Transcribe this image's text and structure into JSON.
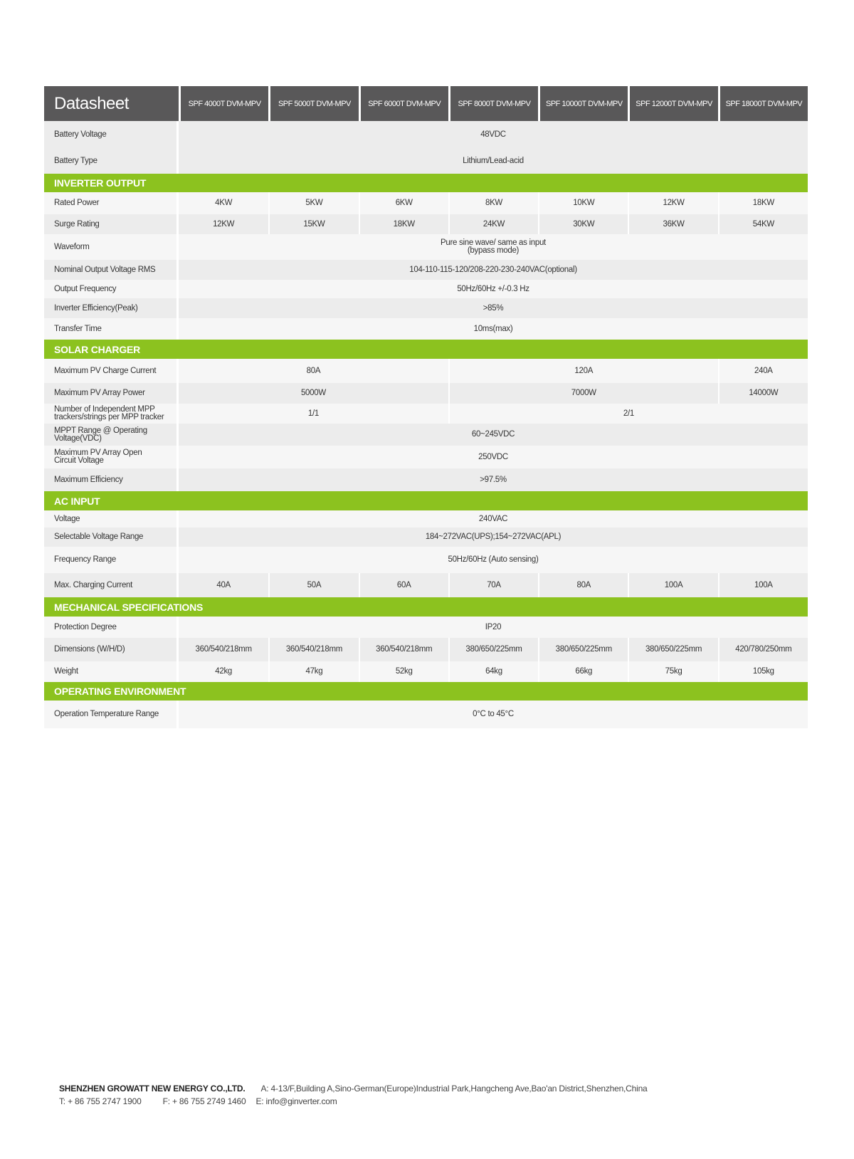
{
  "header": {
    "title": "Datasheet",
    "models": [
      "SPF 4000T DVM-MPV",
      "SPF 5000T DVM-MPV",
      "SPF 6000T DVM-MPV",
      "SPF 8000T DVM-MPV",
      "SPF 10000T DVM-MPV",
      "SPF 12000T DVM-MPV",
      "SPF 18000T DVM-MPV"
    ]
  },
  "colors": {
    "header_bg": "#595859",
    "section_bg": "#8cc21f",
    "row_dark": "#ececec",
    "row_light": "#f6f6f6"
  },
  "rows": [
    {
      "label": "Battery Voltage",
      "cells": [
        {
          "v": "48VDC",
          "span": 7
        }
      ]
    },
    {
      "label": "Battery Type",
      "cells": [
        {
          "v": "Lithium/Lead-acid",
          "span": 7
        }
      ]
    },
    {
      "section": "INVERTER OUTPUT"
    },
    {
      "label": "Rated Power",
      "cells": [
        {
          "v": "4KW"
        },
        {
          "v": "5KW"
        },
        {
          "v": "6KW"
        },
        {
          "v": "8KW"
        },
        {
          "v": "10KW"
        },
        {
          "v": "12KW"
        },
        {
          "v": "18KW"
        }
      ]
    },
    {
      "label": "Surge Rating",
      "cells": [
        {
          "v": "12KW"
        },
        {
          "v": "15KW"
        },
        {
          "v": "18KW"
        },
        {
          "v": "24KW"
        },
        {
          "v": "30KW"
        },
        {
          "v": "36KW"
        },
        {
          "v": "54KW"
        }
      ]
    },
    {
      "label": "Waveform",
      "cells": [
        {
          "v": "Pure sine wave/ same as input\n(bypass mode)",
          "span": 7
        }
      ]
    },
    {
      "label": "Nominal Output Voltage RMS",
      "cells": [
        {
          "v": "104-110-115-120/208-220-230-240VAC(optional)",
          "span": 7
        }
      ]
    },
    {
      "label": "Output Frequency",
      "cells": [
        {
          "v": "50Hz/60Hz +/-0.3 Hz",
          "span": 7
        }
      ]
    },
    {
      "label": "Inverter Efficiency(Peak)",
      "cells": [
        {
          "v": ">85%",
          "span": 7
        }
      ]
    },
    {
      "label": "Transfer Time",
      "cells": [
        {
          "v": "10ms(max)",
          "span": 7
        }
      ]
    },
    {
      "section": "SOLAR CHARGER"
    },
    {
      "label": "Maximum PV Charge Current",
      "cells": [
        {
          "v": "80A",
          "span": 3
        },
        {
          "v": "120A",
          "span": 3
        },
        {
          "v": "240A",
          "span": 1
        }
      ]
    },
    {
      "label": "Maximum PV Array Power",
      "cells": [
        {
          "v": "5000W",
          "span": 3
        },
        {
          "v": "7000W",
          "span": 3
        },
        {
          "v": "14000W",
          "span": 1
        }
      ]
    },
    {
      "label": "Number of Independent MPP\ntrackers/strings per MPP tracker",
      "cells": [
        {
          "v": "1/1",
          "span": 3
        },
        {
          "v": "2/1",
          "span": 4
        }
      ]
    },
    {
      "label": "MPPT Range @ Operating\nVoltage(VDC)",
      "cells": [
        {
          "v": "60~245VDC",
          "span": 7
        }
      ]
    },
    {
      "label": "Maximum PV Array Open\nCircuit Voltage",
      "cells": [
        {
          "v": "250VDC",
          "span": 7
        }
      ]
    },
    {
      "label": "Maximum Efficiency",
      "cells": [
        {
          "v": ">97.5%",
          "span": 7
        }
      ]
    },
    {
      "section": "AC INPUT"
    },
    {
      "label": "Voltage",
      "cells": [
        {
          "v": "240VAC",
          "span": 7
        }
      ]
    },
    {
      "label": "Selectable Voltage Range",
      "cells": [
        {
          "v": "184~272VAC(UPS);154~272VAC(APL)",
          "span": 7
        }
      ]
    },
    {
      "label": "Frequency Range",
      "cells": [
        {
          "v": "50Hz/60Hz (Auto sensing)",
          "span": 7
        }
      ]
    },
    {
      "label": "Max. Charging Current",
      "cells": [
        {
          "v": "40A"
        },
        {
          "v": "50A"
        },
        {
          "v": "60A"
        },
        {
          "v": "70A"
        },
        {
          "v": "80A"
        },
        {
          "v": "100A"
        },
        {
          "v": "100A"
        }
      ]
    },
    {
      "section": "MECHANICAL SPECIFICATIONS"
    },
    {
      "label": "Protection Degree",
      "cells": [
        {
          "v": "IP20",
          "span": 7
        }
      ]
    },
    {
      "label": "Dimensions (W/H/D)",
      "cells": [
        {
          "v": "360/540/218mm"
        },
        {
          "v": "360/540/218mm"
        },
        {
          "v": "360/540/218mm"
        },
        {
          "v": "380/650/225mm"
        },
        {
          "v": "380/650/225mm"
        },
        {
          "v": "380/650/225mm"
        },
        {
          "v": "420/780/250mm"
        }
      ]
    },
    {
      "label": "Weight",
      "cells": [
        {
          "v": "42kg"
        },
        {
          "v": "47kg"
        },
        {
          "v": "52kg"
        },
        {
          "v": "64kg"
        },
        {
          "v": "66kg"
        },
        {
          "v": "75kg"
        },
        {
          "v": "105kg"
        }
      ]
    },
    {
      "section": "OPERATING ENVIRONMENT"
    },
    {
      "label": "Operation Temperature Range",
      "cells": [
        {
          "v": "0°C to 45°C",
          "span": 7
        }
      ]
    }
  ],
  "footer": {
    "company": "SHENZHEN GROWATT NEW ENERGY CO.,LTD.",
    "address": "A: 4-13/F,Building A,Sino-German(Europe)Industrial Park,Hangcheng Ave,Bao'an District,Shenzhen,China",
    "tel": "T:  + 86 755 2747 1900",
    "fax": "F:  + 86 755 2749 1460",
    "email": "E:  info@ginverter.com"
  }
}
